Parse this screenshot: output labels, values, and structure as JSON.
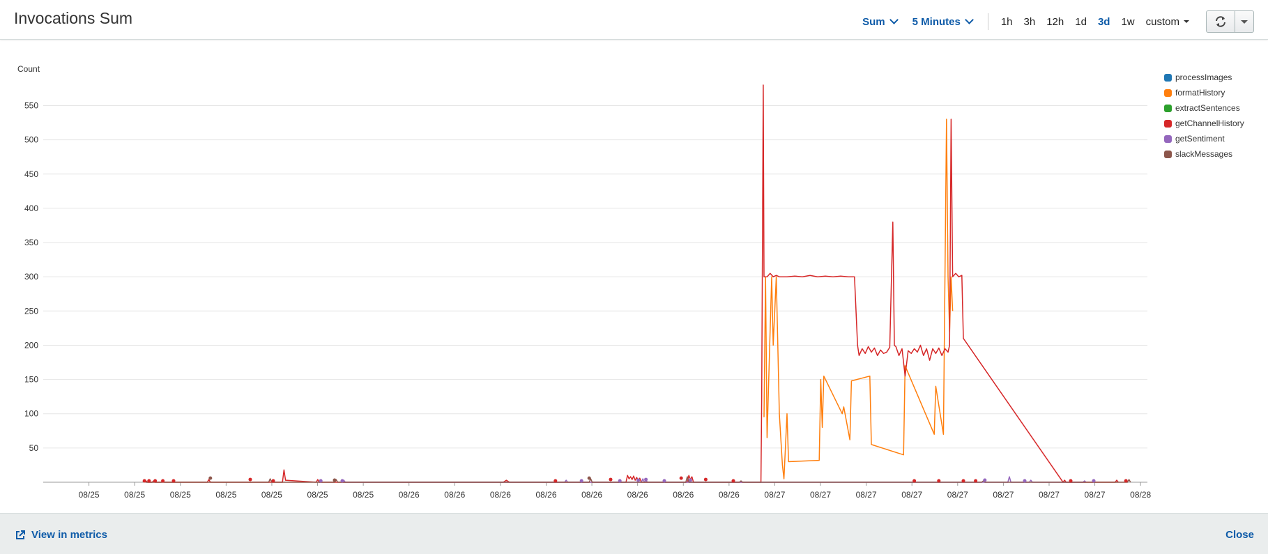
{
  "header": {
    "title": "Invocations Sum",
    "statistic": "Sum",
    "period": "5 Minutes",
    "ranges": [
      "1h",
      "3h",
      "12h",
      "1d",
      "3d",
      "1w"
    ],
    "active_range": "3d",
    "custom_label": "custom"
  },
  "footer": {
    "view_metrics_label": "View in metrics",
    "close_label": "Close"
  },
  "chart_data": {
    "type": "line",
    "title": "Invocations Sum",
    "ylabel": "Count",
    "xlabel": "",
    "ylim": [
      0,
      580
    ],
    "yticks": [
      50,
      100,
      150,
      200,
      250,
      300,
      350,
      400,
      450,
      500,
      550
    ],
    "x_ticks": [
      "08/25",
      "08/25",
      "08/25",
      "08/25",
      "08/25",
      "08/25",
      "08/25",
      "08/26",
      "08/26",
      "08/26",
      "08/26",
      "08/26",
      "08/26",
      "08/26",
      "08/26",
      "08/27",
      "08/27",
      "08/27",
      "08/27",
      "08/27",
      "08/27",
      "08/27",
      "08/27",
      "08/28"
    ],
    "x_range": [
      0,
      72
    ],
    "x_unit": "hours",
    "grid": true,
    "legend_position": "right",
    "series": [
      {
        "name": "processImages",
        "color": "#1f77b4",
        "points": []
      },
      {
        "name": "formatHistory",
        "color": "#ff7f0e",
        "points": [
          [
            47.0,
            95
          ],
          [
            47.1,
            300
          ],
          [
            47.2,
            65
          ],
          [
            47.5,
            300
          ],
          [
            47.6,
            200
          ],
          [
            47.8,
            300
          ],
          [
            48.0,
            100
          ],
          [
            48.2,
            25
          ],
          [
            48.3,
            5
          ],
          [
            48.5,
            100
          ],
          [
            48.6,
            30
          ],
          [
            50.6,
            32
          ],
          [
            50.7,
            150
          ],
          [
            50.8,
            80
          ],
          [
            50.9,
            155
          ],
          [
            52.1,
            100
          ],
          [
            52.2,
            110
          ],
          [
            52.6,
            62
          ],
          [
            52.7,
            148
          ],
          [
            53.9,
            155
          ],
          [
            54.0,
            55
          ],
          [
            56.1,
            40
          ],
          [
            56.2,
            170
          ],
          [
            58.1,
            70
          ],
          [
            58.2,
            140
          ],
          [
            58.7,
            70
          ],
          [
            58.8,
            300
          ],
          [
            58.9,
            530
          ],
          [
            59.0,
            300
          ],
          [
            59.1,
            220
          ],
          [
            59.2,
            300
          ],
          [
            59.3,
            250
          ]
        ]
      },
      {
        "name": "extractSentences",
        "color": "#2ca02c",
        "points": []
      },
      {
        "name": "getChannelHistory",
        "color": "#d62728",
        "points": [
          [
            6.6,
            0
          ],
          [
            6.7,
            2
          ],
          [
            6.8,
            0
          ],
          [
            7.1,
            0
          ],
          [
            7.2,
            2
          ],
          [
            7.3,
            0
          ],
          [
            7.7,
            0
          ],
          [
            7.8,
            2
          ],
          [
            7.9,
            0
          ],
          [
            10.7,
            0
          ],
          [
            10.8,
            4
          ],
          [
            10.9,
            0
          ],
          [
            15.6,
            0
          ],
          [
            15.7,
            18
          ],
          [
            15.8,
            3
          ],
          [
            17.8,
            0
          ],
          [
            17.9,
            4
          ],
          [
            18.0,
            0
          ],
          [
            30.0,
            0
          ],
          [
            30.2,
            3
          ],
          [
            30.4,
            0
          ],
          [
            38.0,
            0
          ],
          [
            38.1,
            10
          ],
          [
            38.2,
            5
          ],
          [
            38.3,
            8
          ],
          [
            38.4,
            4
          ],
          [
            38.5,
            9
          ],
          [
            38.6,
            3
          ],
          [
            38.7,
            7
          ],
          [
            38.8,
            2
          ],
          [
            38.9,
            6
          ],
          [
            39.0,
            0
          ],
          [
            42.0,
            0
          ],
          [
            42.1,
            10
          ],
          [
            42.2,
            4
          ],
          [
            42.3,
            8
          ],
          [
            42.4,
            0
          ],
          [
            46.8,
            0
          ],
          [
            46.85,
            125
          ],
          [
            46.95,
            580
          ],
          [
            47.0,
            300
          ],
          [
            47.2,
            300
          ],
          [
            47.4,
            305
          ],
          [
            47.6,
            300
          ],
          [
            47.8,
            302
          ],
          [
            48.0,
            300
          ],
          [
            48.5,
            300
          ],
          [
            49.0,
            301
          ],
          [
            49.5,
            300
          ],
          [
            50.0,
            302
          ],
          [
            50.5,
            300
          ],
          [
            51.0,
            301
          ],
          [
            51.5,
            300
          ],
          [
            52.0,
            301
          ],
          [
            52.5,
            300
          ],
          [
            52.9,
            300
          ],
          [
            53.1,
            200
          ],
          [
            53.2,
            185
          ],
          [
            53.4,
            195
          ],
          [
            53.6,
            188
          ],
          [
            53.8,
            198
          ],
          [
            54.0,
            190
          ],
          [
            54.2,
            196
          ],
          [
            54.4,
            185
          ],
          [
            54.6,
            193
          ],
          [
            54.8,
            188
          ],
          [
            55.0,
            190
          ],
          [
            55.2,
            197
          ],
          [
            55.4,
            380
          ],
          [
            55.5,
            200
          ],
          [
            55.6,
            198
          ],
          [
            55.8,
            185
          ],
          [
            56.0,
            195
          ],
          [
            56.2,
            155
          ],
          [
            56.4,
            192
          ],
          [
            56.6,
            188
          ],
          [
            56.8,
            195
          ],
          [
            57.0,
            190
          ],
          [
            57.2,
            200
          ],
          [
            57.4,
            185
          ],
          [
            57.6,
            195
          ],
          [
            57.8,
            178
          ],
          [
            58.0,
            195
          ],
          [
            58.2,
            188
          ],
          [
            58.4,
            196
          ],
          [
            58.6,
            185
          ],
          [
            58.8,
            195
          ],
          [
            59.0,
            190
          ],
          [
            59.1,
            200
          ],
          [
            59.2,
            530
          ],
          [
            59.3,
            300
          ],
          [
            59.5,
            305
          ],
          [
            59.7,
            300
          ],
          [
            59.9,
            302
          ],
          [
            60.0,
            210
          ],
          [
            66.5,
            0
          ],
          [
            66.6,
            3
          ],
          [
            66.7,
            0
          ],
          [
            69.9,
            0
          ],
          [
            70.0,
            3
          ],
          [
            70.1,
            0
          ]
        ]
      },
      {
        "name": "getSentiment",
        "color": "#9467bd",
        "points": [
          [
            19.5,
            0
          ],
          [
            19.6,
            3
          ],
          [
            19.7,
            0
          ],
          [
            34.0,
            0
          ],
          [
            34.1,
            3
          ],
          [
            34.2,
            0
          ],
          [
            39.0,
            0
          ],
          [
            39.1,
            5
          ],
          [
            39.2,
            0
          ],
          [
            39.3,
            3
          ],
          [
            39.4,
            0
          ],
          [
            62.9,
            0
          ],
          [
            63.0,
            8
          ],
          [
            63.1,
            0
          ],
          [
            64.3,
            0
          ],
          [
            64.4,
            3
          ],
          [
            64.5,
            0
          ],
          [
            67.8,
            0
          ],
          [
            67.9,
            2
          ],
          [
            68.0,
            0
          ]
        ]
      },
      {
        "name": "slackMessages",
        "color": "#8c564b",
        "points": [
          [
            6.5,
            0
          ],
          [
            6.6,
            3
          ],
          [
            6.7,
            0
          ],
          [
            14.7,
            0
          ],
          [
            14.8,
            5
          ],
          [
            14.9,
            0
          ],
          [
            19.0,
            0
          ],
          [
            19.1,
            4
          ],
          [
            19.2,
            0
          ],
          [
            35.6,
            0
          ],
          [
            35.7,
            5
          ],
          [
            35.8,
            0
          ],
          [
            41.9,
            0
          ],
          [
            42.0,
            8
          ],
          [
            42.1,
            0
          ],
          [
            45.4,
            0
          ],
          [
            45.5,
            2
          ],
          [
            45.6,
            0
          ],
          [
            61.2,
            0
          ],
          [
            61.3,
            2
          ],
          [
            61.4,
            0
          ],
          [
            70.7,
            0
          ],
          [
            70.8,
            4
          ],
          [
            70.9,
            0
          ]
        ]
      }
    ],
    "markers": [
      {
        "x": 6.6,
        "y": 2,
        "series": "getChannelHistory"
      },
      {
        "x": 6.9,
        "y": 2,
        "series": "getChannelHistory"
      },
      {
        "x": 7.3,
        "y": 2,
        "series": "getChannelHistory"
      },
      {
        "x": 7.8,
        "y": 2,
        "series": "getChannelHistory"
      },
      {
        "x": 8.5,
        "y": 2,
        "series": "getChannelHistory"
      },
      {
        "x": 10.9,
        "y": 6,
        "series": "slackMessages"
      },
      {
        "x": 13.5,
        "y": 4,
        "series": "getChannelHistory"
      },
      {
        "x": 15.0,
        "y": 2,
        "series": "getChannelHistory"
      },
      {
        "x": 18.1,
        "y": 2,
        "series": "getSentiment"
      },
      {
        "x": 19.0,
        "y": 3,
        "series": "slackMessages"
      },
      {
        "x": 19.5,
        "y": 2,
        "series": "getSentiment"
      },
      {
        "x": 33.4,
        "y": 2,
        "series": "getChannelHistory"
      },
      {
        "x": 35.1,
        "y": 2,
        "series": "getSentiment"
      },
      {
        "x": 35.6,
        "y": 6,
        "series": "slackMessages"
      },
      {
        "x": 37.0,
        "y": 4,
        "series": "getChannelHistory"
      },
      {
        "x": 37.6,
        "y": 2,
        "series": "getSentiment"
      },
      {
        "x": 38.8,
        "y": 3,
        "series": "getSentiment"
      },
      {
        "x": 39.3,
        "y": 4,
        "series": "getSentiment"
      },
      {
        "x": 40.5,
        "y": 2,
        "series": "getSentiment"
      },
      {
        "x": 41.6,
        "y": 6,
        "series": "getChannelHistory"
      },
      {
        "x": 42.2,
        "y": 3,
        "series": "getSentiment"
      },
      {
        "x": 43.2,
        "y": 4,
        "series": "getChannelHistory"
      },
      {
        "x": 45.0,
        "y": 2,
        "series": "getChannelHistory"
      },
      {
        "x": 56.8,
        "y": 2,
        "series": "getChannelHistory"
      },
      {
        "x": 58.4,
        "y": 2,
        "series": "getChannelHistory"
      },
      {
        "x": 60.0,
        "y": 2,
        "series": "getChannelHistory"
      },
      {
        "x": 60.8,
        "y": 2,
        "series": "getChannelHistory"
      },
      {
        "x": 61.4,
        "y": 3,
        "series": "getSentiment"
      },
      {
        "x": 64.0,
        "y": 2,
        "series": "getSentiment"
      },
      {
        "x": 67.0,
        "y": 2,
        "series": "getChannelHistory"
      },
      {
        "x": 68.5,
        "y": 2,
        "series": "getSentiment"
      },
      {
        "x": 70.6,
        "y": 2,
        "series": "getChannelHistory"
      }
    ]
  }
}
